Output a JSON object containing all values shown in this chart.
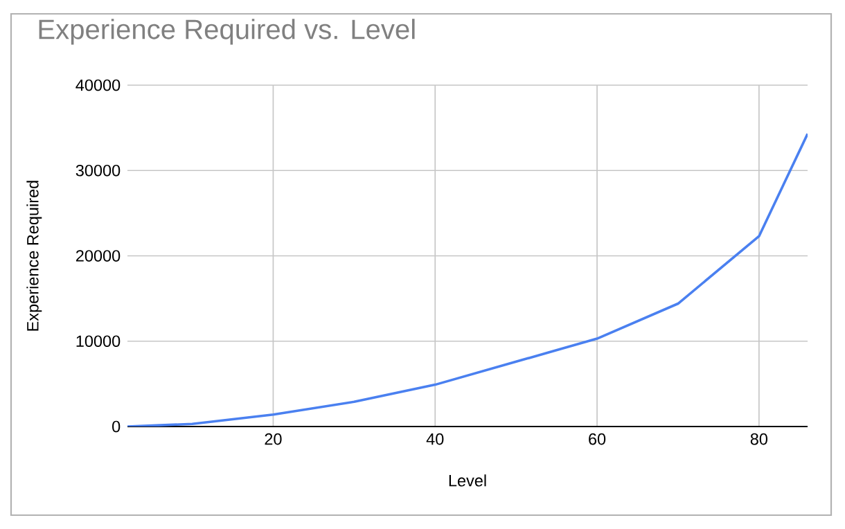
{
  "chart_data": {
    "type": "line",
    "title": "Experience Required vs. Level",
    "xlabel": "Level",
    "ylabel": "Experience Required",
    "x": [
      2,
      10,
      20,
      30,
      40,
      50,
      60,
      70,
      80,
      86
    ],
    "series": [
      {
        "color": "#4a80f0",
        "values": [
          0,
          300,
          1400,
          2900,
          4900,
          7600,
          10300,
          14400,
          22300,
          34300
        ]
      }
    ],
    "xlim": [
      2,
      86
    ],
    "ylim": [
      0,
      40000
    ],
    "xticks": [
      20,
      40,
      60,
      80
    ],
    "yticks": [
      0,
      10000,
      20000,
      30000,
      40000
    ],
    "grid": true,
    "marker": "none",
    "line_style": "solid"
  }
}
